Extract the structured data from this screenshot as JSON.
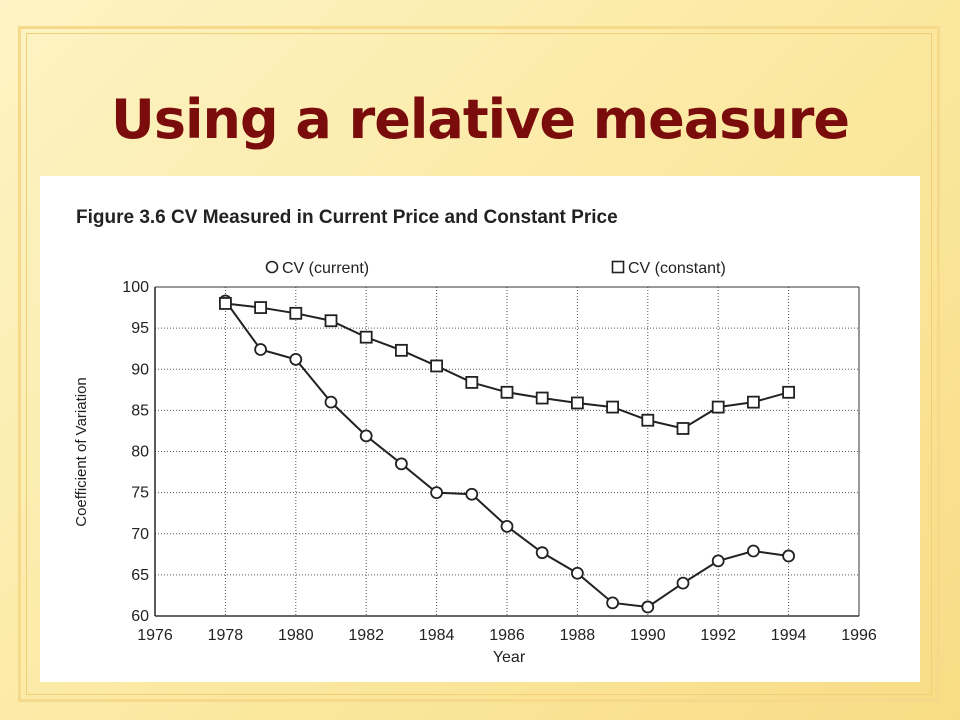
{
  "slide": {
    "title": "Using a relative measure"
  },
  "chart_data": {
    "type": "line",
    "title": "Figure 3.6  CV Measured in Current Price and Constant Price",
    "xlabel": "Year",
    "ylabel": "Coefficient of Variation",
    "xlim": [
      1976,
      1996
    ],
    "ylim": [
      60,
      100
    ],
    "xticks": [
      1976,
      1978,
      1980,
      1982,
      1984,
      1986,
      1988,
      1990,
      1992,
      1994,
      1996
    ],
    "yticks": [
      60,
      65,
      70,
      75,
      80,
      85,
      90,
      95,
      100
    ],
    "grid": true,
    "legend_position": "top",
    "x": [
      1978,
      1979,
      1980,
      1981,
      1982,
      1983,
      1984,
      1985,
      1986,
      1987,
      1988,
      1989,
      1990,
      1991,
      1992,
      1993,
      1994
    ],
    "series": [
      {
        "name": "CV (current)",
        "marker": "circle",
        "values": [
          98.3,
          92.4,
          91.2,
          86.0,
          81.9,
          78.5,
          75.0,
          74.8,
          70.9,
          67.7,
          65.2,
          61.6,
          61.1,
          64.0,
          66.7,
          67.9,
          67.3
        ]
      },
      {
        "name": "CV (constant)",
        "marker": "square",
        "values": [
          98.0,
          97.5,
          96.8,
          95.9,
          93.9,
          92.3,
          90.4,
          88.4,
          87.2,
          86.5,
          85.9,
          85.4,
          83.8,
          82.8,
          85.4,
          86.0,
          87.2
        ]
      }
    ],
    "colors": {
      "line": "#222222",
      "grid": "#555555",
      "axes": "#333333"
    }
  }
}
